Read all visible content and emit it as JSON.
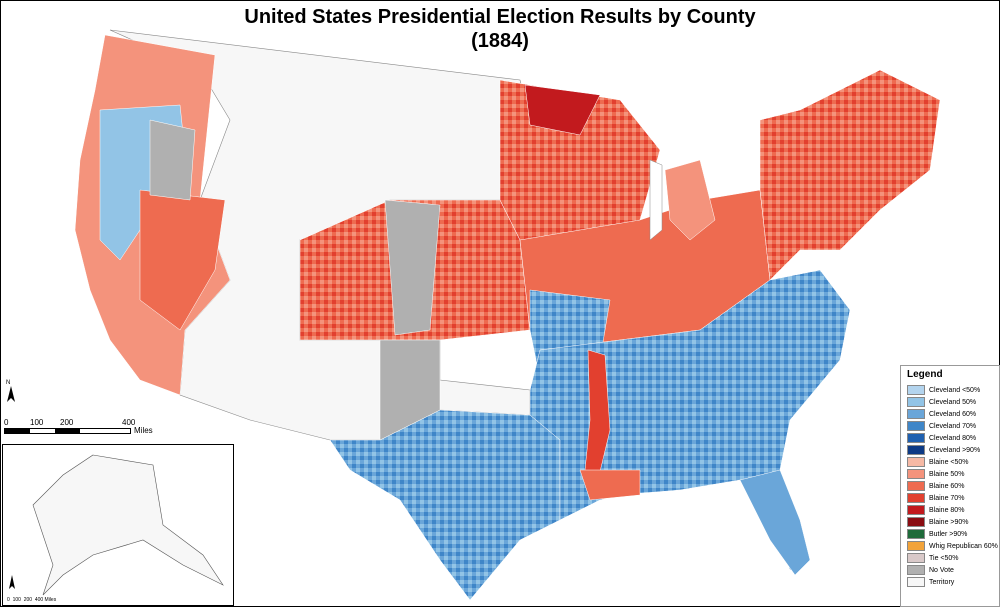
{
  "title": {
    "line1": "United States Presidential Election Results by County",
    "line2": "(1884)"
  },
  "legend": {
    "heading": "Legend",
    "items": [
      {
        "label": "Cleveland <50%",
        "color": "#b3d4ee"
      },
      {
        "label": "Cleveland 50%",
        "color": "#92c4e6"
      },
      {
        "label": "Cleveland 60%",
        "color": "#6aa6d9"
      },
      {
        "label": "Cleveland 70%",
        "color": "#3f86c8"
      },
      {
        "label": "Cleveland 80%",
        "color": "#1f60b0"
      },
      {
        "label": "Cleveland >90%",
        "color": "#0d3a85"
      },
      {
        "label": "Blaine <50%",
        "color": "#f6b9a5"
      },
      {
        "label": "Blaine 50%",
        "color": "#f4937c"
      },
      {
        "label": "Blaine 60%",
        "color": "#ee6b50"
      },
      {
        "label": "Blaine 70%",
        "color": "#e2402f"
      },
      {
        "label": "Blaine 80%",
        "color": "#c21a1e"
      },
      {
        "label": "Blaine >90%",
        "color": "#8a0c12"
      },
      {
        "label": "Butler >90%",
        "color": "#1f6b3a"
      },
      {
        "label": "Whig Republican 60%",
        "color": "#f2a33a"
      },
      {
        "label": "Tie <50%",
        "color": "#d9c9c9"
      },
      {
        "label": "No Vote",
        "color": "#b0b0b0"
      },
      {
        "label": "Territory",
        "color": "#f7f7f7"
      }
    ]
  },
  "scale": {
    "ticks": [
      "0",
      "100",
      "200",
      "400"
    ],
    "units": "Miles",
    "north": "N"
  },
  "inset_scale": {
    "ticks": [
      "0",
      "100",
      "200",
      "400"
    ],
    "units": "Miles"
  }
}
